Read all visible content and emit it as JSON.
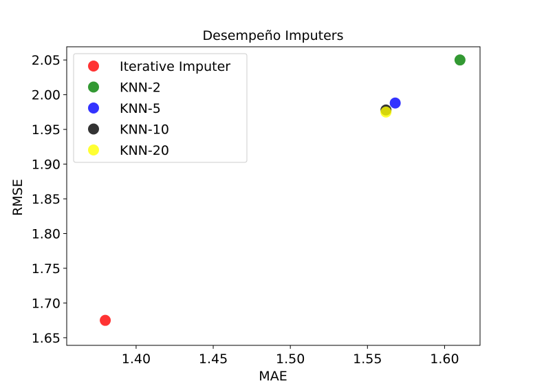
{
  "chart_data": {
    "type": "scatter",
    "title": "Desempeño Imputers",
    "xlabel": "MAE",
    "ylabel": "RMSE",
    "xlim": [
      1.355,
      1.623
    ],
    "ylim": [
      1.639,
      2.069
    ],
    "xticks": [
      "1.40",
      "1.45",
      "1.50",
      "1.55",
      "1.60"
    ],
    "yticks": [
      "1.65",
      "1.70",
      "1.75",
      "1.80",
      "1.85",
      "1.90",
      "1.95",
      "2.00",
      "2.05"
    ],
    "legend_position": "upper-left",
    "grid": false,
    "series": [
      {
        "name": "Iterative Imputer",
        "color": "#ff0000",
        "x": [
          1.38
        ],
        "y": [
          1.675
        ]
      },
      {
        "name": "KNN-2",
        "color": "#008000",
        "x": [
          1.61
        ],
        "y": [
          2.05
        ]
      },
      {
        "name": "KNN-5",
        "color": "#0000ff",
        "x": [
          1.568
        ],
        "y": [
          1.988
        ]
      },
      {
        "name": "KNN-10",
        "color": "#000000",
        "x": [
          1.562
        ],
        "y": [
          1.978
        ]
      },
      {
        "name": "KNN-20",
        "color": "#ffff00",
        "x": [
          1.562
        ],
        "y": [
          1.975
        ]
      }
    ]
  }
}
